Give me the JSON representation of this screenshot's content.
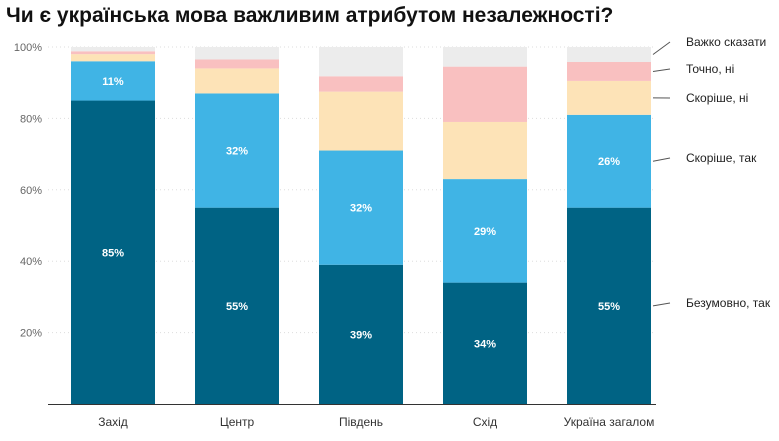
{
  "chart_data": {
    "type": "bar",
    "stacked": true,
    "title": "Чи є українська мова важливим атрибутом незалежності?",
    "xlabel": "",
    "ylabel": "",
    "ylim": [
      0,
      100
    ],
    "y_ticks": [
      "20%",
      "40%",
      "60%",
      "80%",
      "100%"
    ],
    "y_tick_values": [
      20,
      40,
      60,
      80,
      100
    ],
    "categories": [
      "Захід",
      "Центр",
      "Південь",
      "Схід",
      "Україна загалом"
    ],
    "series": [
      {
        "name": "Безумовно, так",
        "color": "#006384",
        "values": [
          85,
          55,
          39,
          34,
          55
        ],
        "labels": [
          "85%",
          "55%",
          "39%",
          "34%",
          "55%"
        ]
      },
      {
        "name": "Скоріше, так",
        "color": "#40b4e5",
        "values": [
          11,
          32,
          32,
          29,
          26
        ],
        "labels": [
          "11%",
          "32%",
          "32%",
          "29%",
          "26%"
        ]
      },
      {
        "name": "Скоріше, ні",
        "color": "#fde3b7",
        "values": [
          2,
          7,
          16.5,
          16,
          9.5
        ],
        "labels": [
          null,
          null,
          null,
          null,
          null
        ]
      },
      {
        "name": "Точно, ні",
        "color": "#f9c0c0",
        "values": [
          0.8,
          2.5,
          4.3,
          15.5,
          5.3
        ],
        "labels": [
          null,
          null,
          null,
          null,
          null
        ]
      },
      {
        "name": "Важко сказати",
        "color": "#ececec",
        "values": [
          1.2,
          3.5,
          8.2,
          5.5,
          4.2
        ],
        "labels": [
          null,
          null,
          null,
          null,
          null
        ]
      }
    ],
    "legend_position": "right",
    "grid": true
  }
}
